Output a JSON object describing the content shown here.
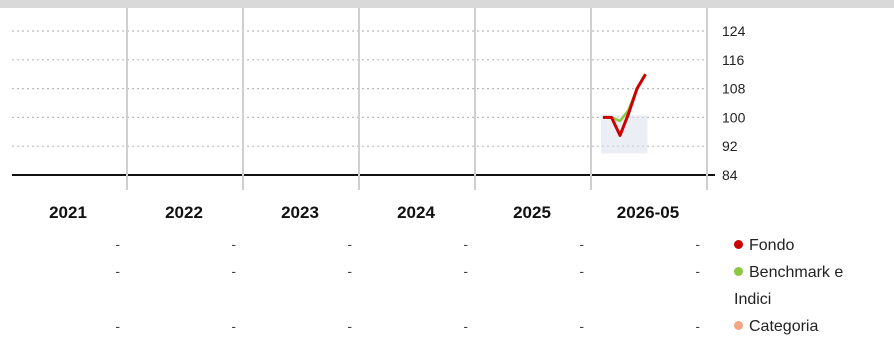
{
  "chart_data": {
    "type": "line",
    "years": [
      "2021",
      "2022",
      "2023",
      "2024",
      "2025",
      "2026-05"
    ],
    "ylim": [
      84,
      124
    ],
    "yticks": [
      124,
      116,
      108,
      100,
      92,
      84
    ],
    "series": [
      {
        "name": "Fondo",
        "color": "#cc0000",
        "x": [
          "2025-08",
          "2025-09",
          "2025-10",
          "2025-11",
          "2025-12",
          "2026-01"
        ],
        "values": [
          100,
          100,
          95,
          101,
          108,
          112
        ]
      },
      {
        "name": "Benchmark e Indici",
        "color": "#8dc63f",
        "x": [
          "2025-08",
          "2025-09",
          "2025-10",
          "2025-11",
          "2025-12",
          "2026-01"
        ],
        "values": [
          100,
          100,
          99,
          102,
          108,
          112
        ]
      },
      {
        "name": "Categoria",
        "color": "#f4a582",
        "x": [],
        "values": []
      }
    ],
    "table": {
      "rows": [
        {
          "series": "Fondo",
          "values": [
            "-",
            "-",
            "-",
            "-",
            "-",
            "-"
          ]
        },
        {
          "series": "Benchmark e Indici",
          "values": [
            "-",
            "-",
            "-",
            "-",
            "-",
            "-"
          ]
        },
        {
          "series": "Categoria",
          "values": [
            "-",
            "-",
            "-",
            "-",
            "-",
            "-"
          ]
        }
      ]
    }
  },
  "legend": [
    {
      "label": "Fondo",
      "color": "#cc0000"
    },
    {
      "label": "Benchmark e Indici",
      "color": "#8dc63f"
    },
    {
      "label": "Categoria",
      "color": "#f4a582"
    }
  ]
}
